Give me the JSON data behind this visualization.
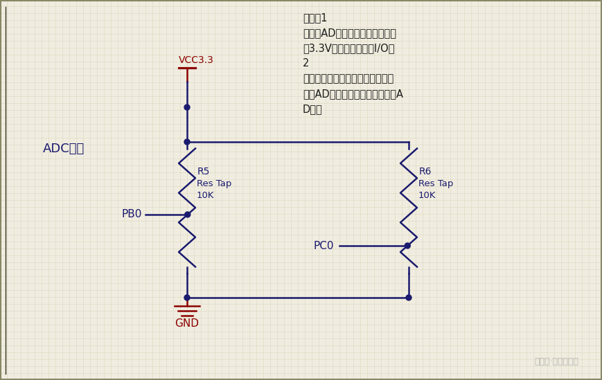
{
  "bg_color": "#f0ede0",
  "grid_color": "#d8d0b8",
  "circuit_color": "#1a1a6e",
  "vcc_color": "#8b0000",
  "gnd_color": "#8b0000",
  "label_color": "#1a1a6e",
  "title_color": "#1a1a6e",
  "note_color": "#1a1a1a",
  "title": "ADC实验",
  "vcc_label": "VCC3.3",
  "gnd_label": "GND",
  "r5_label1": "R5",
  "r5_label2": "Res Tap",
  "r5_label3": "10K",
  "r6_label1": "R6",
  "r6_label2": "Res Tap",
  "r6_label3": "10K",
  "pb0_label": "PB0",
  "pc0_label": "PC0",
  "note_line1": "注意：1",
  "note_line2": "这里的AD采样电压最大值不能超",
  "note_line3": "过3.3V，否则容易烧坏I/O口",
  "note_line4": "2",
  "note_line5": "这里焊接了两个变阻器可以完成单",
  "note_line6": "个的AD采样，也可以完成双通道A",
  "note_line7": "D采样",
  "watermark": "公众号·硬件攻城狮",
  "figsize": [
    8.69,
    5.49
  ],
  "dpi": 100
}
